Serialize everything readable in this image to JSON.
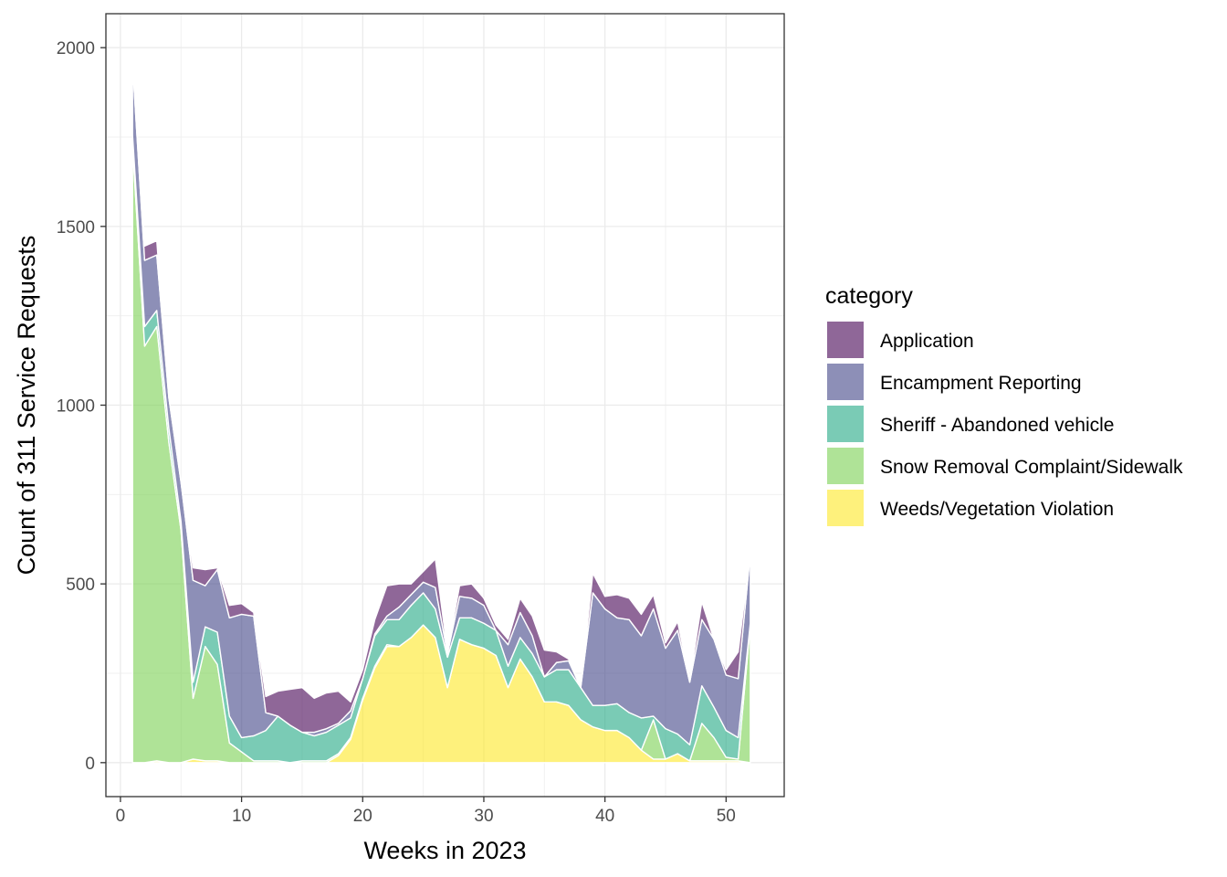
{
  "chart_data": {
    "type": "area",
    "stacked": true,
    "xlabel": "Weeks in 2023",
    "ylabel": "Count of 311 Service Requests",
    "xlim": [
      -1.2,
      54.8
    ],
    "ylim": [
      -95,
      2095
    ],
    "xticks": [
      0,
      10,
      20,
      30,
      40,
      50
    ],
    "yticks": [
      0,
      500,
      1000,
      1500,
      2000
    ],
    "grid": true,
    "legend": {
      "title": "category",
      "position": "right"
    },
    "x": [
      1,
      2,
      3,
      4,
      5,
      6,
      7,
      8,
      9,
      10,
      11,
      12,
      13,
      14,
      15,
      16,
      17,
      18,
      19,
      20,
      21,
      22,
      23,
      24,
      25,
      26,
      27,
      28,
      29,
      30,
      31,
      32,
      33,
      34,
      35,
      36,
      37,
      38,
      39,
      40,
      41,
      42,
      43,
      44,
      45,
      46,
      47,
      48,
      49,
      50,
      51,
      52
    ],
    "series": [
      {
        "name": "Weeds/Vegetation Violation",
        "color": "#fde725",
        "values": [
          0,
          0,
          5,
          0,
          0,
          10,
          5,
          5,
          0,
          0,
          0,
          0,
          0,
          0,
          0,
          0,
          0,
          20,
          65,
          175,
          265,
          325,
          325,
          350,
          385,
          350,
          210,
          345,
          330,
          320,
          300,
          210,
          290,
          240,
          170,
          170,
          160,
          120,
          100,
          90,
          90,
          70,
          35,
          10,
          10,
          25,
          5,
          5,
          5,
          5,
          5,
          0
        ]
      },
      {
        "name": "Snow Removal Complaint/Sidewalk",
        "color": "#7ad151",
        "values": [
          1725,
          1165,
          1215,
          895,
          650,
          170,
          320,
          270,
          55,
          30,
          5,
          5,
          5,
          0,
          5,
          5,
          5,
          5,
          5,
          5,
          5,
          5,
          0,
          0,
          0,
          0,
          0,
          0,
          0,
          0,
          0,
          0,
          0,
          0,
          0,
          0,
          0,
          0,
          0,
          0,
          0,
          0,
          0,
          110,
          0,
          0,
          0,
          105,
          65,
          10,
          5,
          385
        ]
      },
      {
        "name": "Sheriff - Abandoned vehicle",
        "color": "#22a884",
        "values": [
          30,
          55,
          45,
          40,
          25,
          45,
          55,
          90,
          75,
          40,
          70,
          85,
          125,
          105,
          80,
          70,
          80,
          80,
          55,
          55,
          85,
          70,
          75,
          90,
          90,
          80,
          85,
          60,
          75,
          70,
          70,
          60,
          60,
          65,
          70,
          90,
          100,
          90,
          60,
          70,
          75,
          70,
          90,
          10,
          85,
          55,
          45,
          105,
          85,
          75,
          60,
          5
        ]
      },
      {
        "name": "Encampment Reporting",
        "color": "#414487",
        "values": [
          200,
          185,
          155,
          85,
          110,
          285,
          115,
          175,
          275,
          345,
          335,
          50,
          0,
          0,
          0,
          10,
          10,
          5,
          20,
          0,
          5,
          10,
          35,
          30,
          30,
          60,
          10,
          60,
          55,
          50,
          0,
          60,
          70,
          50,
          0,
          20,
          25,
          0,
          315,
          270,
          240,
          260,
          230,
          300,
          225,
          290,
          175,
          185,
          190,
          155,
          165,
          195
        ]
      },
      {
        "name": "Application",
        "color": "#440154",
        "values": [
          0,
          40,
          40,
          0,
          0,
          35,
          45,
          5,
          35,
          30,
          10,
          45,
          70,
          100,
          125,
          95,
          100,
          90,
          25,
          25,
          40,
          85,
          65,
          30,
          30,
          80,
          5,
          30,
          40,
          20,
          15,
          15,
          40,
          55,
          75,
          30,
          5,
          0,
          55,
          35,
          65,
          60,
          60,
          40,
          15,
          25,
          5,
          50,
          0,
          15,
          75,
          0
        ]
      }
    ]
  }
}
